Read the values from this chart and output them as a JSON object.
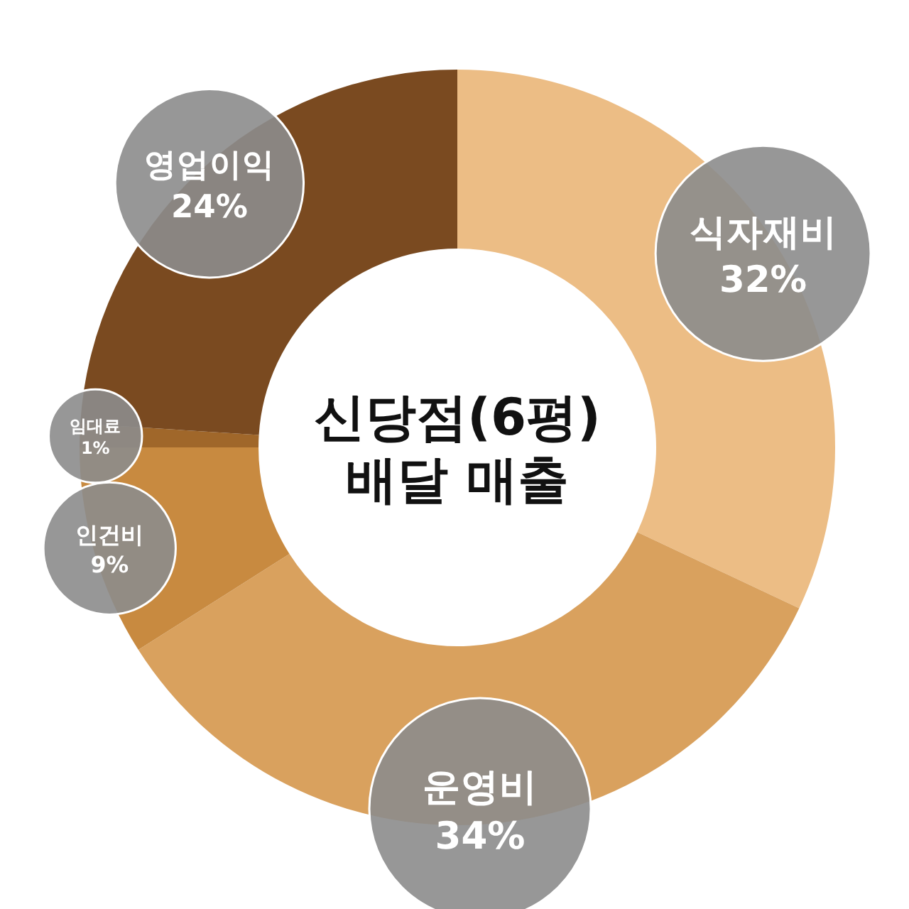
{
  "chart_data": {
    "type": "donut",
    "title": "신당점(6평)\n배달 매출",
    "categories": [
      "식자재비",
      "운영비",
      "인건비",
      "임대료",
      "영업이익"
    ],
    "values": [
      32,
      34,
      9,
      1,
      24
    ],
    "value_labels": [
      "32%",
      "34%",
      "9%",
      "1%",
      "24%"
    ],
    "colors": [
      "#ecbd85",
      "#d9a15e",
      "#c88a40",
      "#a0672a",
      "#7a4a20"
    ]
  }
}
